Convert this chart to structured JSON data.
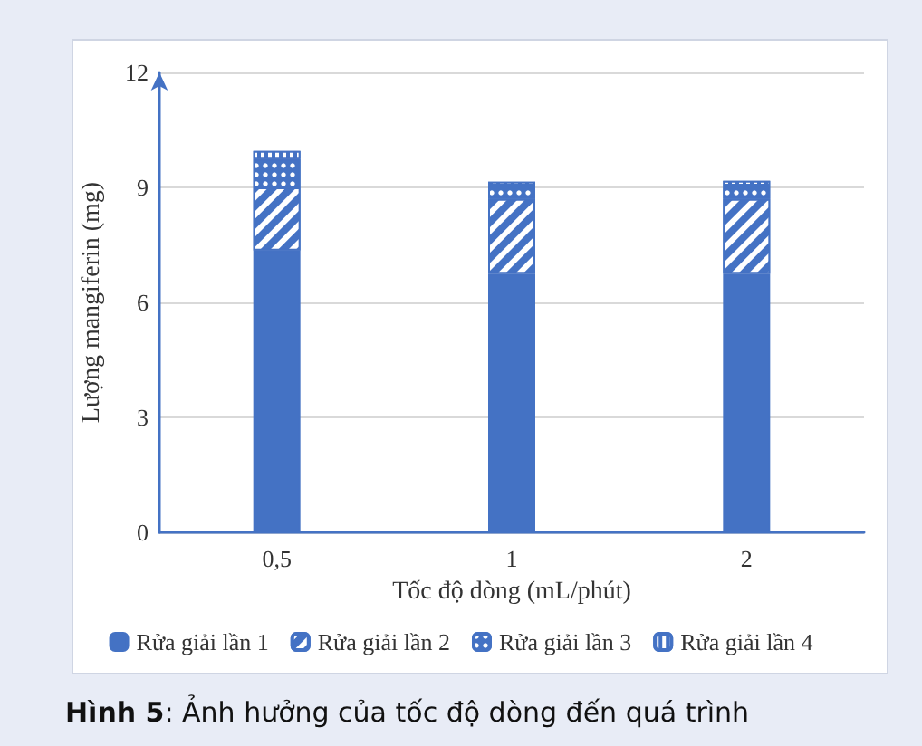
{
  "chart_data": {
    "type": "bar",
    "stacked": true,
    "xlabel": "Tốc độ dòng (mL/phút)",
    "ylabel": "Lượng mangiferin (mg)",
    "categories": [
      "0,5",
      "1",
      "2"
    ],
    "series": [
      {
        "name": "Rửa giải lần 1",
        "color": "#4472c4",
        "values": [
          7.35,
          6.75,
          6.75
        ]
      },
      {
        "name": "Rửa giải lần 2",
        "color": "#4472c4",
        "values": [
          1.65,
          1.95,
          1.95
        ]
      },
      {
        "name": "Rửa giải lần 3",
        "color": "#4472c4",
        "values": [
          0.75,
          0.35,
          0.35
        ]
      },
      {
        "name": "Rửa giải lần 4",
        "color": "#4472c4",
        "values": [
          0.2,
          0.1,
          0.12
        ]
      }
    ],
    "ylim": [
      0,
      12
    ],
    "yticks": [
      0,
      3,
      6,
      9,
      12
    ],
    "grid": "y",
    "legend": "bottom",
    "annotations": [
      "Hình 5: Ảnh hưởng của tốc độ dòng đến quá trình"
    ]
  }
}
